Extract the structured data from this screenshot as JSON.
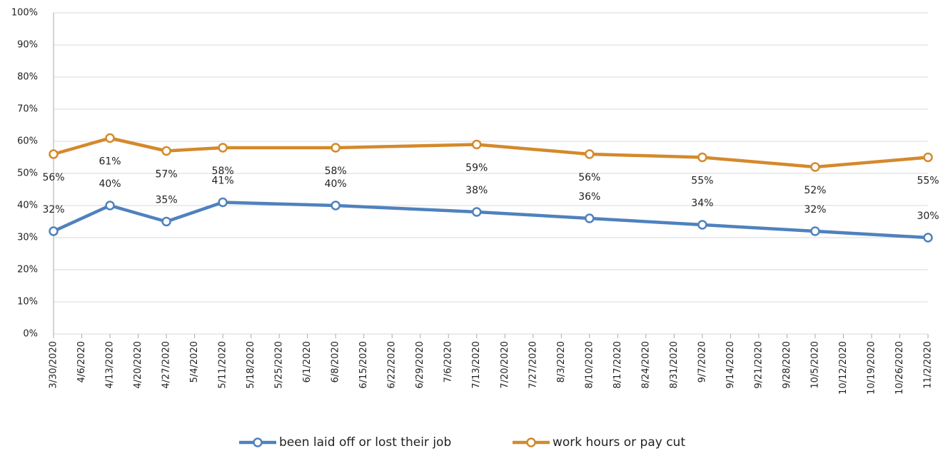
{
  "chart_data": {
    "type": "line",
    "x": [
      "3/30/2020",
      "4/13/2020",
      "4/27/2020",
      "5/11/2020",
      "6/8/2020",
      "7/13/2020",
      "8/10/2020",
      "9/7/2020",
      "10/5/2020",
      "11/2/2020"
    ],
    "series": [
      {
        "name": "been laid off or lost their job",
        "color": "#4f81bd",
        "values": [
          32,
          40,
          35,
          41,
          40,
          38,
          36,
          34,
          32,
          30
        ],
        "value_labels": [
          "32%",
          "40%",
          "35%",
          "41%",
          "40%",
          "38%",
          "36%",
          "34%",
          "32%",
          "30%"
        ]
      },
      {
        "name": "work hours or pay cut",
        "color": "#d4892b",
        "values": [
          56,
          61,
          57,
          58,
          58,
          59,
          56,
          55,
          52,
          55
        ],
        "value_labels": [
          "56%",
          "61%",
          "57%",
          "58%",
          "58%",
          "59%",
          "56%",
          "55%",
          "52%",
          "55%"
        ]
      }
    ],
    "xlim": [
      "3/30/2020",
      "11/2/2020"
    ],
    "xticks": [
      "3/30/2020",
      "4/6/2020",
      "4/13/2020",
      "4/20/2020",
      "4/27/2020",
      "5/4/2020",
      "5/11/2020",
      "5/18/2020",
      "5/25/2020",
      "6/1/2020",
      "6/8/2020",
      "6/15/2020",
      "6/22/2020",
      "6/29/2020",
      "7/6/2020",
      "7/13/2020",
      "7/20/2020",
      "7/27/2020",
      "8/3/2020",
      "8/10/2020",
      "8/17/2020",
      "8/24/2020",
      "8/31/2020",
      "9/7/2020",
      "9/14/2020",
      "9/21/2020",
      "9/28/2020",
      "10/5/2020",
      "10/12/2020",
      "10/19/2020",
      "10/26/2020",
      "11/2/2020"
    ],
    "ylim": [
      0,
      100
    ],
    "yticks": [
      {
        "value": 0,
        "label": "0%"
      },
      {
        "value": 10,
        "label": "10%"
      },
      {
        "value": 20,
        "label": "20%"
      },
      {
        "value": 30,
        "label": "30%"
      },
      {
        "value": 40,
        "label": "40%"
      },
      {
        "value": 50,
        "label": "50%"
      },
      {
        "value": 60,
        "label": "60%"
      },
      {
        "value": 70,
        "label": "70%"
      },
      {
        "value": 80,
        "label": "80%"
      },
      {
        "value": 90,
        "label": "90%"
      },
      {
        "value": 100,
        "label": "100%"
      }
    ],
    "grid": true,
    "legend": "bottom"
  }
}
